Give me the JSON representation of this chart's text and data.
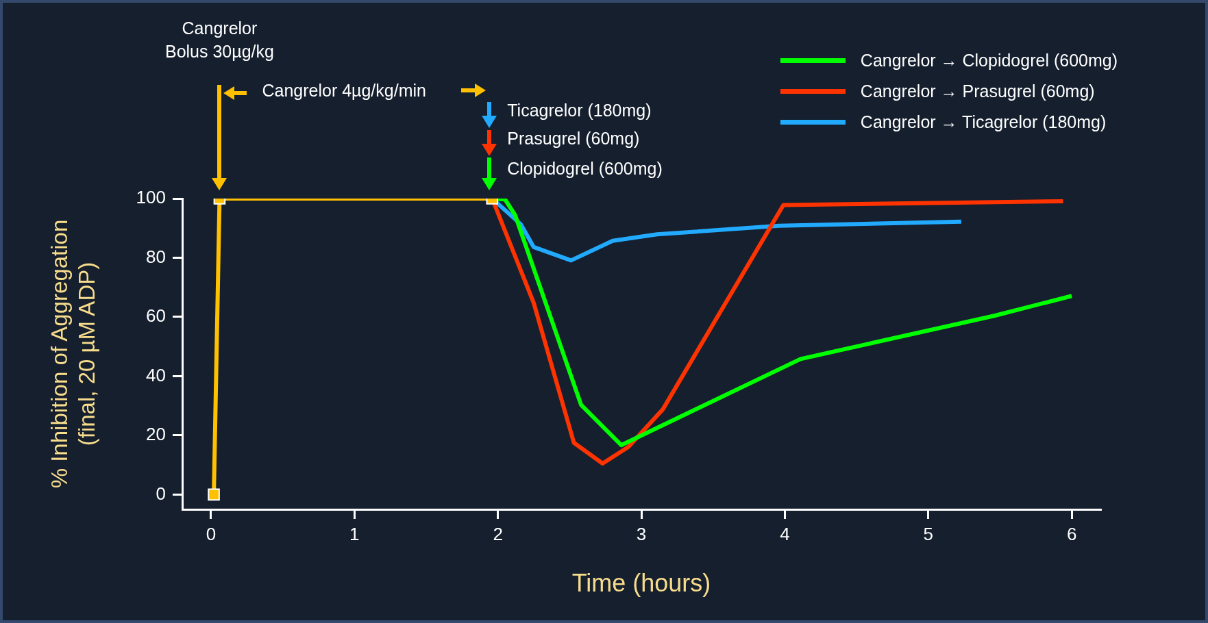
{
  "chart_data": {
    "type": "line",
    "xlabel": "Time (hours)",
    "ylabel": "% Inhibition of Aggregation\n(final, 20 µM ADP)",
    "xlim": [
      -0.2,
      6.2
    ],
    "xticks": [
      0,
      1,
      2,
      3,
      4,
      5,
      6
    ],
    "ylim": [
      -5,
      100
    ],
    "yticks": [
      0,
      20,
      40,
      60,
      80,
      100
    ],
    "grid": false,
    "legend": "top right",
    "marker": "none",
    "line_style": "solid",
    "series": [
      {
        "name": "Cangrelor → Clopidogrel (600mg)",
        "color": "#00ff00",
        "x": [
          1.96,
          2.05,
          2.12,
          2.58,
          2.86,
          4.11,
          5.46,
          6.0
        ],
        "values": [
          100,
          99.7,
          94.4,
          30.3,
          16.7,
          45.8,
          60.4,
          67.1
        ]
      },
      {
        "name": "Cangrelor → Prasugrel (60mg)",
        "color": "#ff3300",
        "x": [
          1.96,
          2.25,
          2.53,
          2.73,
          2.91,
          3.15,
          3.99,
          5.94
        ],
        "values": [
          100,
          64.7,
          17.5,
          10.5,
          16.1,
          28.8,
          97.8,
          99.1
        ]
      },
      {
        "name": "Cangrelor → Ticagrelor (180mg)",
        "color": "#22aaff",
        "x": [
          1.96,
          2.16,
          2.25,
          2.51,
          2.8,
          3.11,
          3.96,
          5.23
        ],
        "values": [
          100,
          91.3,
          83.6,
          79.1,
          85.7,
          87.9,
          90.8,
          92.2
        ]
      },
      {
        "color": "#ffc000",
        "marker": "square",
        "x": [
          0.02,
          0.06,
          1.96
        ],
        "values": [
          0,
          100,
          100
        ]
      }
    ],
    "annotations": [
      "Cangrelor\nBolus 30µg/kg",
      "Cangrelor 4µg/kg/min",
      "Ticagrelor (180mg)",
      "Prasugrel (60mg)",
      "Clopidogrel (600mg)"
    ]
  }
}
